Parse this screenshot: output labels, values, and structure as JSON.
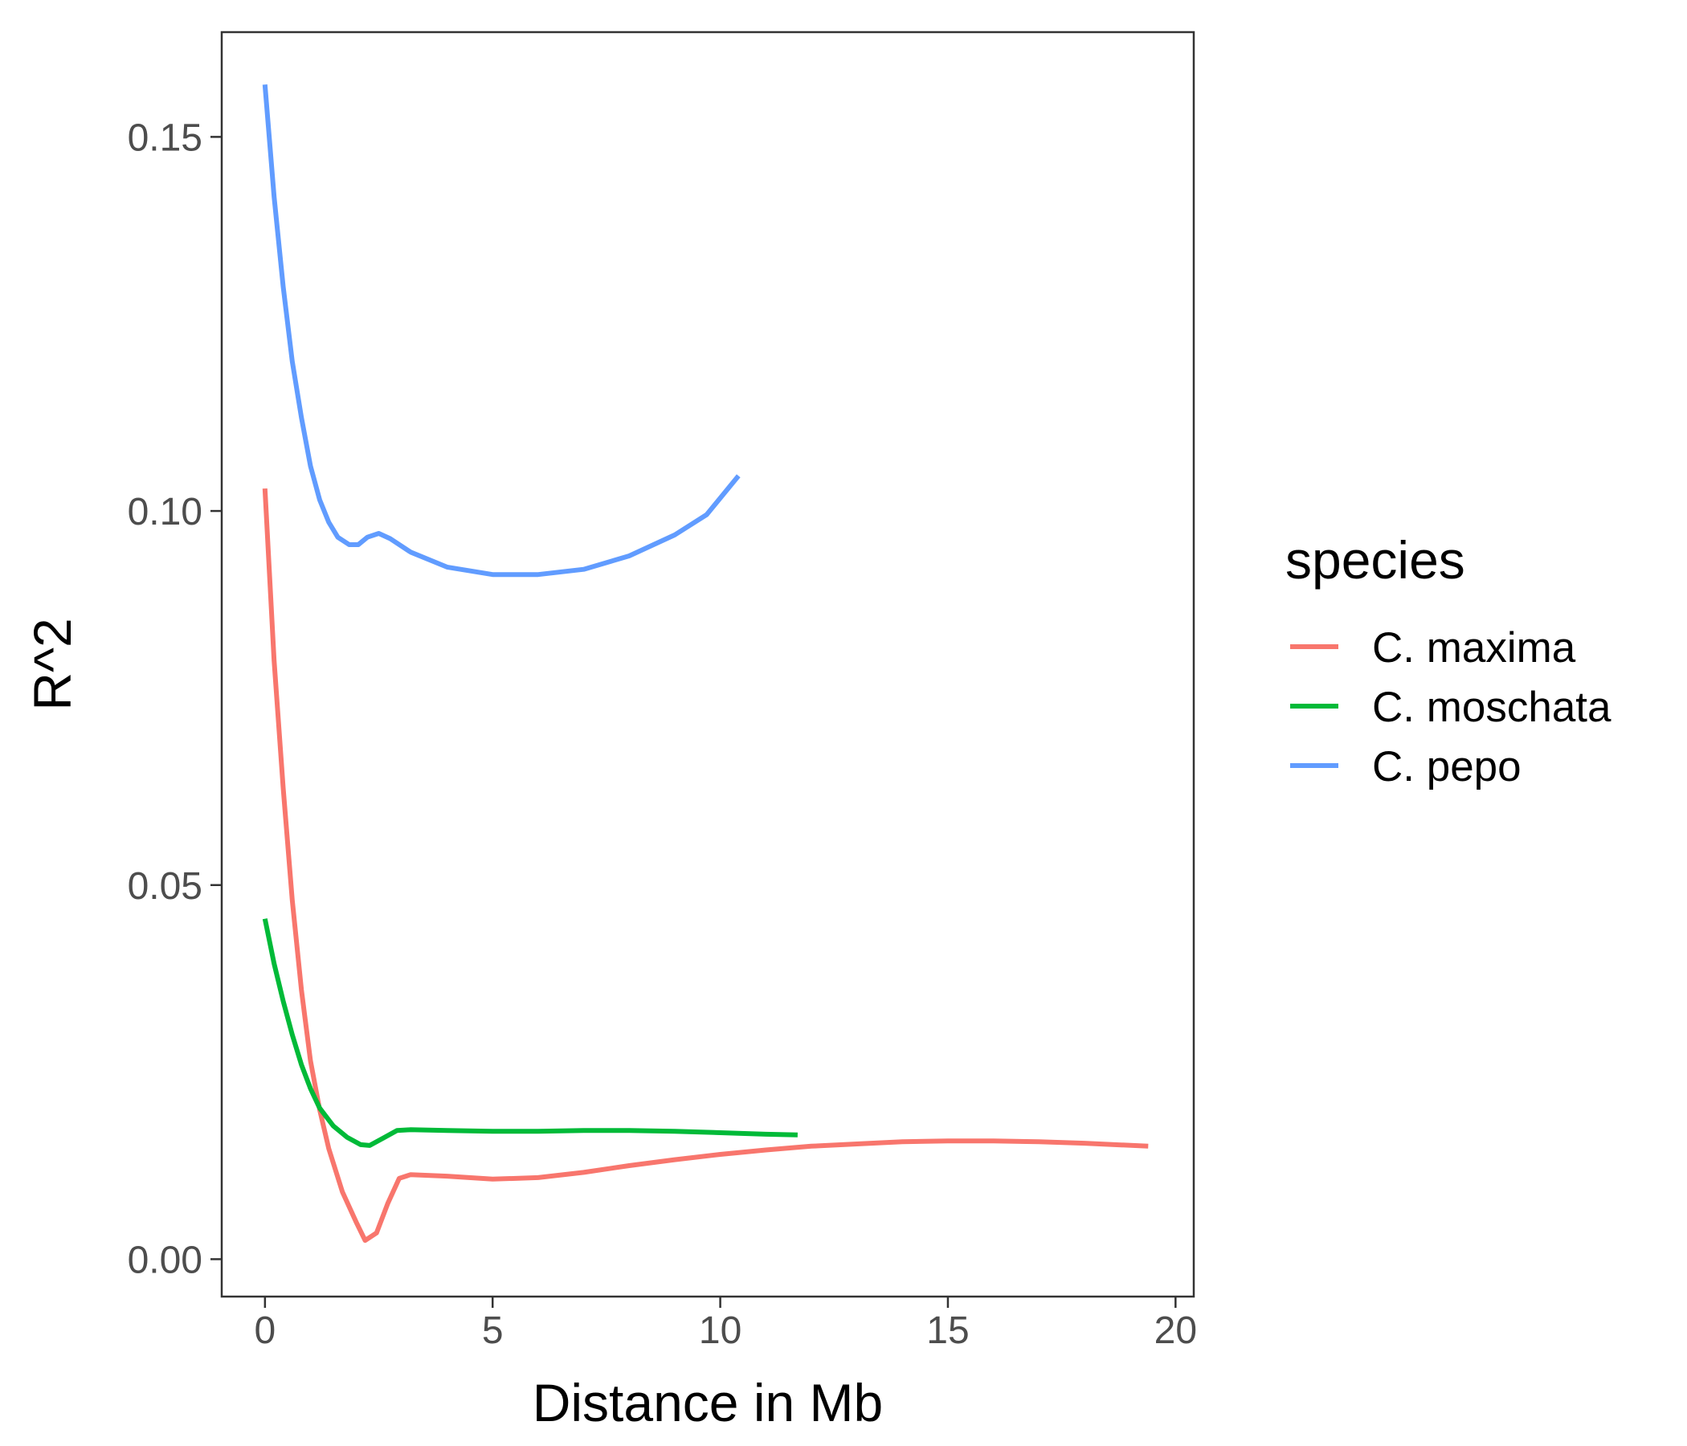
{
  "chart_data": {
    "type": "line",
    "xlabel": "Distance in Mb",
    "ylabel": "R^2",
    "xlim": [
      -0.95,
      20.4
    ],
    "ylim": [
      -0.005,
      0.164
    ],
    "x_ticks": [
      0,
      5,
      10,
      15,
      20
    ],
    "y_ticks": [
      0.0,
      0.05,
      0.1,
      0.15
    ],
    "x_tick_labels": [
      "0",
      "5",
      "10",
      "15",
      "20"
    ],
    "y_tick_labels": [
      "0.00",
      "0.05",
      "0.10",
      "0.15"
    ],
    "grid": false,
    "legend": {
      "title": "species",
      "position": "right"
    },
    "series": [
      {
        "name": "C. maxima",
        "color": "#F8766D",
        "points": [
          [
            0,
            0.103
          ],
          [
            0.2,
            0.08
          ],
          [
            0.4,
            0.063
          ],
          [
            0.6,
            0.048
          ],
          [
            0.8,
            0.036
          ],
          [
            1.0,
            0.0265
          ],
          [
            1.2,
            0.02
          ],
          [
            1.4,
            0.0148
          ],
          [
            1.7,
            0.009
          ],
          [
            2.0,
            0.005
          ],
          [
            2.2,
            0.0025
          ],
          [
            2.45,
            0.0035
          ],
          [
            2.7,
            0.0075
          ],
          [
            2.95,
            0.0108
          ],
          [
            3.2,
            0.0113
          ],
          [
            4.0,
            0.0111
          ],
          [
            5.0,
            0.0107
          ],
          [
            6.0,
            0.0109
          ],
          [
            7.0,
            0.0116
          ],
          [
            8.0,
            0.0125
          ],
          [
            9.0,
            0.0133
          ],
          [
            10.0,
            0.014
          ],
          [
            11.0,
            0.0146
          ],
          [
            12.0,
            0.0151
          ],
          [
            13.0,
            0.0154
          ],
          [
            14.0,
            0.0157
          ],
          [
            15.0,
            0.0158
          ],
          [
            16.0,
            0.0158
          ],
          [
            17.0,
            0.0157
          ],
          [
            18.0,
            0.0155
          ],
          [
            19.4,
            0.0151
          ]
        ]
      },
      {
        "name": "C. moschata",
        "color": "#00BA38",
        "points": [
          [
            0,
            0.0455
          ],
          [
            0.2,
            0.0395
          ],
          [
            0.4,
            0.0345
          ],
          [
            0.6,
            0.03
          ],
          [
            0.8,
            0.026
          ],
          [
            1.0,
            0.0228
          ],
          [
            1.2,
            0.0202
          ],
          [
            1.5,
            0.0178
          ],
          [
            1.8,
            0.0163
          ],
          [
            2.1,
            0.0153
          ],
          [
            2.3,
            0.0152
          ],
          [
            2.6,
            0.0162
          ],
          [
            2.9,
            0.0172
          ],
          [
            3.2,
            0.0173
          ],
          [
            4.0,
            0.0172
          ],
          [
            5.0,
            0.0171
          ],
          [
            6.0,
            0.0171
          ],
          [
            7.0,
            0.0172
          ],
          [
            8.0,
            0.0172
          ],
          [
            9.0,
            0.0171
          ],
          [
            10.0,
            0.0169
          ],
          [
            11.0,
            0.0167
          ],
          [
            11.7,
            0.0166
          ]
        ]
      },
      {
        "name": "C. pepo",
        "color": "#619CFF",
        "points": [
          [
            0,
            0.157
          ],
          [
            0.2,
            0.142
          ],
          [
            0.4,
            0.13
          ],
          [
            0.6,
            0.12
          ],
          [
            0.8,
            0.1125
          ],
          [
            1.0,
            0.106
          ],
          [
            1.2,
            0.1015
          ],
          [
            1.4,
            0.0985
          ],
          [
            1.6,
            0.0965
          ],
          [
            1.85,
            0.0955
          ],
          [
            2.05,
            0.0955
          ],
          [
            2.25,
            0.0965
          ],
          [
            2.5,
            0.097
          ],
          [
            2.75,
            0.0963
          ],
          [
            3.2,
            0.0945
          ],
          [
            4.0,
            0.0925
          ],
          [
            5.0,
            0.0915
          ],
          [
            6.0,
            0.0915
          ],
          [
            7.0,
            0.0922
          ],
          [
            8.0,
            0.094
          ],
          [
            9.0,
            0.0968
          ],
          [
            9.7,
            0.0995
          ],
          [
            10.4,
            0.1047
          ]
        ]
      }
    ]
  }
}
